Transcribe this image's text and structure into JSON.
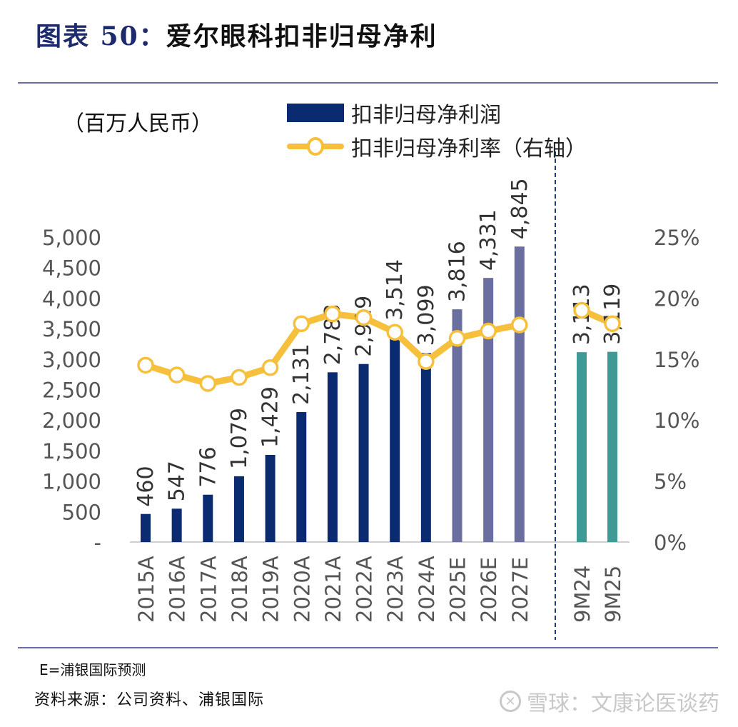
{
  "header": {
    "title_prefix": "图表 50：",
    "title_text": "爱尔眼科扣非归母净利"
  },
  "footer": {
    "note": "E=浦银国际预测",
    "source": "资料来源：公司资料、浦银国际",
    "watermark_text": "雪球：文康论医谈药",
    "watermark_icon": "snowball-logo-icon"
  },
  "colors": {
    "actual_bar": "#0b2b70",
    "estimate_bar": "#6a6fa0",
    "interim_bar": "#3f9a96",
    "line": "#f6c03d",
    "rule": "#6a6fa3",
    "divider": "#1d3a7a",
    "tick_text": "#555555",
    "label_text": "#333333"
  },
  "chart_data": {
    "type": "bar",
    "title": "爱尔眼科扣非归母净利",
    "unit_label": "（百万人民币）",
    "xlabel": "",
    "ylabel": "",
    "categories": [
      "2015A",
      "2016A",
      "2017A",
      "2018A",
      "2019A",
      "2020A",
      "2021A",
      "2022A",
      "2023A",
      "2024A",
      "2025E",
      "2026E",
      "2027E",
      "9M24",
      "9M25"
    ],
    "category_groups": [
      "actual",
      "actual",
      "actual",
      "actual",
      "actual",
      "actual",
      "actual",
      "actual",
      "actual",
      "actual",
      "estimate",
      "estimate",
      "estimate",
      "interim",
      "interim"
    ],
    "series": [
      {
        "name": "扣非归母净利润",
        "type": "bar",
        "axis": "left",
        "values": [
          460,
          547,
          776,
          1079,
          1429,
          2131,
          2783,
          2919,
          3514,
          3099,
          3816,
          4331,
          4845,
          3113,
          3119
        ],
        "data_labels": [
          "460",
          "547",
          "776",
          "1,079",
          "1,429",
          "2,131",
          "2,783",
          "2,919",
          "3,514",
          "3,099",
          "3,816",
          "4,331",
          "4,845",
          "3,113",
          "3,119"
        ]
      },
      {
        "name": "扣非归母净利率（右轴）",
        "type": "line",
        "axis": "right",
        "values": [
          14.5,
          13.7,
          13.0,
          13.5,
          14.3,
          17.9,
          18.7,
          18.4,
          17.2,
          14.8,
          16.7,
          17.3,
          17.8,
          19.0,
          17.9
        ],
        "segments": [
          [
            0,
            12
          ],
          [
            13,
            14
          ]
        ]
      }
    ],
    "y_left": {
      "range": [
        0,
        5000
      ],
      "ticks": [
        0,
        500,
        1000,
        1500,
        2000,
        2500,
        3000,
        3500,
        4000,
        4500,
        5000
      ],
      "tick_labels": [
        "-",
        "500",
        "1,000",
        "1,500",
        "2,000",
        "2,500",
        "3,000",
        "3,500",
        "4,000",
        "4,500",
        "5,000"
      ]
    },
    "y_right": {
      "range": [
        0,
        25
      ],
      "ticks": [
        0,
        5,
        10,
        15,
        20,
        25
      ],
      "tick_labels": [
        "0%",
        "5%",
        "10%",
        "15%",
        "20%",
        "25%"
      ]
    },
    "divider_after_index": 12,
    "grid": false,
    "legend": {
      "position": "top-center",
      "entries": [
        "扣非归母净利润",
        "扣非归母净利率（右轴）"
      ]
    }
  }
}
